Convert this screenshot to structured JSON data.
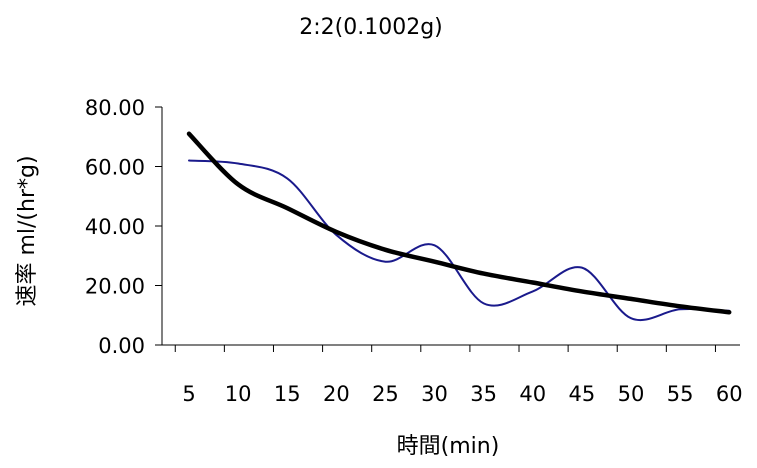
{
  "chart_data": {
    "type": "line",
    "title": "2:2(0.1002g)",
    "xlabel": "時間(min)",
    "ylabel": "速率 ml/(hr*g)",
    "categories": [
      "5",
      "10",
      "15",
      "20",
      "25",
      "30",
      "35",
      "40",
      "45",
      "50",
      "55",
      "60"
    ],
    "ylim": [
      0,
      80
    ],
    "y_ticks": [
      "0.00",
      "20.00",
      "40.00",
      "60.00",
      "80.00"
    ],
    "grid": false,
    "legend": "none",
    "series": [
      {
        "values": [
          62,
          61,
          56,
          37,
          28,
          33.5,
          14,
          18,
          26,
          9,
          12,
          11.5
        ],
        "color": "#1a1a8c",
        "style": "smoothed"
      },
      {
        "values": [
          71,
          54,
          46,
          38,
          32,
          28,
          24,
          21,
          18,
          15.5,
          13,
          11
        ],
        "color": "#000000",
        "style": "trendline"
      }
    ]
  }
}
